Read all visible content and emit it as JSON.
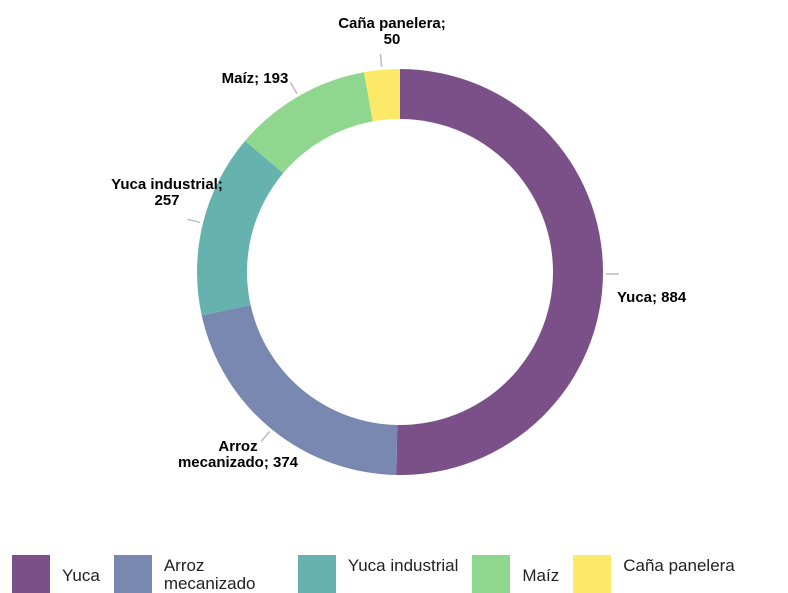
{
  "chart_data": {
    "type": "donut",
    "categories": [
      "Yuca",
      "Arroz mecanizado",
      "Yuca industrial",
      "Maíz",
      "Caña panelera"
    ],
    "values": [
      884,
      374,
      257,
      193,
      50
    ],
    "value_labels": [
      [
        "Yuca; 884"
      ],
      [
        "Arroz",
        "mecanizado; 374"
      ],
      [
        "Yuca industrial;",
        "257"
      ],
      [
        "Maíz; 193"
      ],
      [
        "Caña panelera;",
        "50"
      ]
    ],
    "colors": [
      "#7b4f88",
      "#7888b0",
      "#66b2ae",
      "#8fd68e",
      "#fbe967"
    ],
    "legend": "bottom"
  }
}
